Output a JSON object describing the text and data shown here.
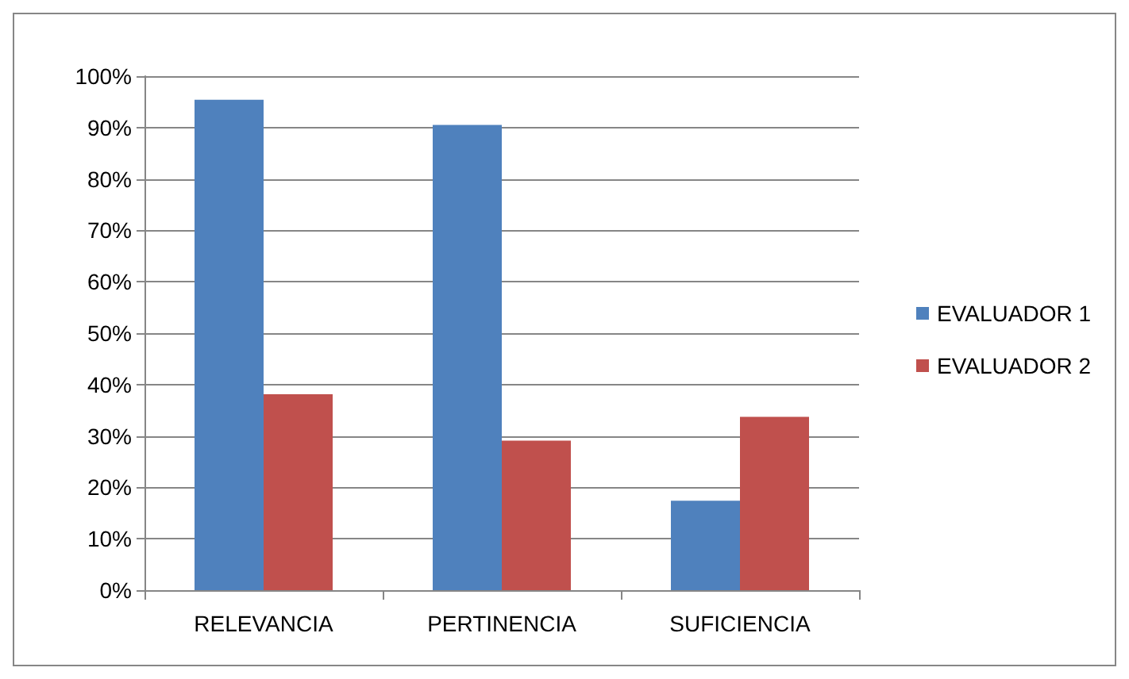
{
  "chart_data": {
    "type": "bar",
    "categories": [
      "RELEVANCIA",
      "PERTINENCIA",
      "SUFICIENCIA"
    ],
    "series": [
      {
        "name": "EVALUADOR 1",
        "color": "#4f81bd",
        "values": [
          95.4,
          90.5,
          17.4
        ]
      },
      {
        "name": "EVALUADOR 2",
        "color": "#c0504d",
        "values": [
          38.1,
          29.1,
          33.7
        ]
      }
    ],
    "ylim": [
      0,
      100
    ],
    "yticks": [
      {
        "value": 0,
        "label": "0%"
      },
      {
        "value": 10,
        "label": "10%"
      },
      {
        "value": 20,
        "label": "20%"
      },
      {
        "value": 30,
        "label": "30%"
      },
      {
        "value": 40,
        "label": "40%"
      },
      {
        "value": 50,
        "label": "50%"
      },
      {
        "value": 60,
        "label": "60%"
      },
      {
        "value": 70,
        "label": "70%"
      },
      {
        "value": 80,
        "label": "80%"
      },
      {
        "value": 90,
        "label": "90%"
      },
      {
        "value": 100,
        "label": "100%"
      }
    ],
    "grid": "y",
    "legend": "right"
  }
}
